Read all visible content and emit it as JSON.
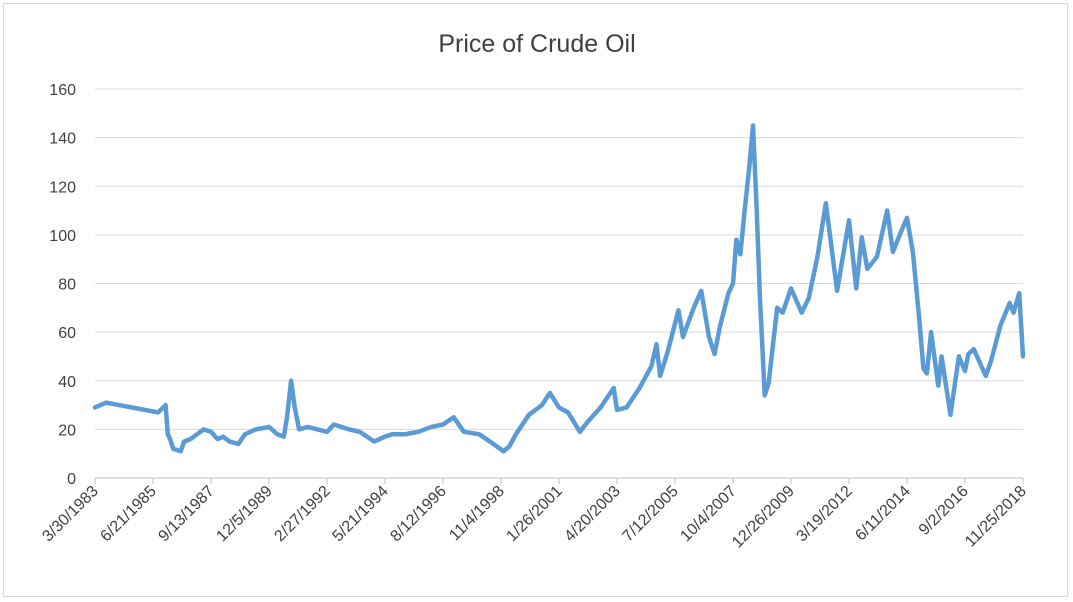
{
  "chart_data": {
    "type": "line",
    "title": "Price of Crude Oil",
    "xlabel": "",
    "ylabel": "",
    "ylim": [
      0,
      160
    ],
    "y_ticks": [
      "0",
      "20",
      "40",
      "60",
      "80",
      "100",
      "120",
      "140",
      "160"
    ],
    "x_ticks": [
      "3/30/1983",
      "6/21/1985",
      "9/13/1987",
      "12/5/1989",
      "2/27/1992",
      "5/21/1994",
      "8/12/1996",
      "11/4/1998",
      "1/26/2001",
      "4/20/2003",
      "7/12/2005",
      "10/4/2007",
      "12/26/2009",
      "3/19/2012",
      "6/11/2014",
      "9/2/2016",
      "11/25/2018"
    ],
    "grid": "horizontal",
    "legend": "none",
    "series_color": "#5b9bd5",
    "series": [
      {
        "x": [
          "1983-03-30",
          "1983-09-01",
          "1984-03-01",
          "1984-09-01",
          "1985-03-01",
          "1985-09-01",
          "1985-12-15",
          "1986-01-15",
          "1986-02-15",
          "1986-04-01",
          "1986-07-15",
          "1986-09-01",
          "1986-12-01",
          "1987-03-01",
          "1987-06-01",
          "1987-09-13",
          "1987-12-15",
          "1988-03-01",
          "1988-06-01",
          "1988-10-01",
          "1989-01-01",
          "1989-06-01",
          "1989-12-05",
          "1990-04-01",
          "1990-07-01",
          "1990-08-15",
          "1990-10-11",
          "1990-12-01",
          "1991-02-01",
          "1991-06-01",
          "1992-02-27",
          "1992-06-01",
          "1993-01-01",
          "1993-06-01",
          "1993-12-20",
          "1994-05-21",
          "1994-09-01",
          "1995-03-01",
          "1995-09-01",
          "1996-03-01",
          "1996-08-12",
          "1997-01-10",
          "1997-06-01",
          "1998-01-01",
          "1998-06-01",
          "1998-12-10",
          "1999-03-01",
          "1999-06-01",
          "1999-12-01",
          "2000-06-01",
          "2000-09-20",
          "2001-01-26",
          "2001-06-01",
          "2001-09-15",
          "2001-11-15",
          "2002-03-01",
          "2002-09-01",
          "2003-03-05",
          "2003-04-20",
          "2003-09-01",
          "2004-03-01",
          "2004-08-15",
          "2004-10-25",
          "2004-12-15",
          "2005-04-01",
          "2005-08-30",
          "2005-11-01",
          "2006-04-01",
          "2006-07-15",
          "2006-11-01",
          "2007-01-18",
          "2007-04-01",
          "2007-08-01",
          "2007-10-04",
          "2007-11-20",
          "2008-01-15",
          "2008-03-15",
          "2008-05-20",
          "2008-07-11",
          "2008-09-01",
          "2008-10-15",
          "2008-12-22",
          "2009-02-15",
          "2009-06-15",
          "2009-09-01",
          "2009-12-26",
          "2010-05-25",
          "2010-09-01",
          "2011-01-01",
          "2011-04-29",
          "2011-10-04",
          "2012-03-19",
          "2012-06-28",
          "2012-09-14",
          "2012-12-01",
          "2013-04-15",
          "2013-09-06",
          "2013-11-25",
          "2014-03-01",
          "2014-06-11",
          "2014-09-01",
          "2014-11-28",
          "2015-01-28",
          "2015-03-17",
          "2015-05-15",
          "2015-08-24",
          "2015-10-09",
          "2016-02-11",
          "2016-06-08",
          "2016-09-02",
          "2016-10-19",
          "2017-01-03",
          "2017-06-21",
          "2017-09-01",
          "2018-01-15",
          "2018-05-22",
          "2018-07-15",
          "2018-10-03",
          "2018-11-25"
        ],
        "y": [
          29,
          31,
          30,
          29,
          28,
          27,
          30,
          18,
          16,
          12,
          11,
          15,
          16,
          18,
          20,
          19,
          16,
          17,
          15,
          14,
          18,
          20,
          21,
          18,
          17,
          25,
          40,
          29,
          20,
          21,
          19,
          22,
          20,
          19,
          15,
          17,
          18,
          18,
          19,
          21,
          22,
          25,
          19,
          18,
          15,
          11,
          13,
          18,
          26,
          30,
          35,
          29,
          27,
          22,
          19,
          23,
          29,
          37,
          28,
          29,
          37,
          46,
          55,
          42,
          52,
          69,
          58,
          70,
          77,
          58,
          51,
          62,
          76,
          80,
          98,
          92,
          110,
          128,
          145,
          110,
          75,
          34,
          39,
          70,
          68,
          78,
          68,
          74,
          91,
          113,
          77,
          106,
          78,
          99,
          86,
          91,
          110,
          93,
          100,
          107,
          93,
          66,
          45,
          43,
          60,
          38,
          50,
          26,
          50,
          44,
          51,
          53,
          42,
          48,
          63,
          72,
          68,
          76,
          50
        ]
      }
    ]
  }
}
